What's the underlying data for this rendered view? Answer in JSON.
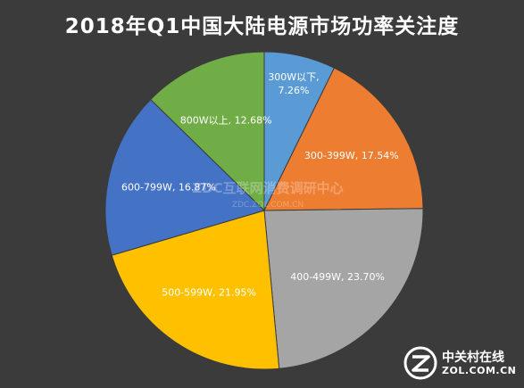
{
  "chart_data": {
    "type": "pie",
    "title": "2018年Q1中国大陆电源市场功率关注度",
    "slices": [
      {
        "label": "300W以下,",
        "value_label": "7.26%",
        "value": 7.26,
        "color": "#5b9bd5"
      },
      {
        "label": "300-399W,",
        "value_label": "17.54%",
        "value": 17.54,
        "color": "#ed7d31"
      },
      {
        "label": "400-499W,",
        "value_label": "23.70%",
        "value": 23.7,
        "color": "#a5a5a5"
      },
      {
        "label": "500-599W,",
        "value_label": "21.95%",
        "value": 21.95,
        "color": "#ffc000"
      },
      {
        "label": "600-799W,",
        "value_label": "16.87%",
        "value": 16.87,
        "color": "#4472c4"
      },
      {
        "label": "800W以上,",
        "value_label": "12.68%",
        "value": 12.68,
        "color": "#70ad47"
      }
    ]
  },
  "watermark": {
    "text": "ZDC互联网消费调研中心",
    "subtext": "ZDC.ZOL.COM.CN"
  },
  "logo": {
    "name_cn": "中关村在线",
    "name_en": "ZOL.COM.CN"
  }
}
